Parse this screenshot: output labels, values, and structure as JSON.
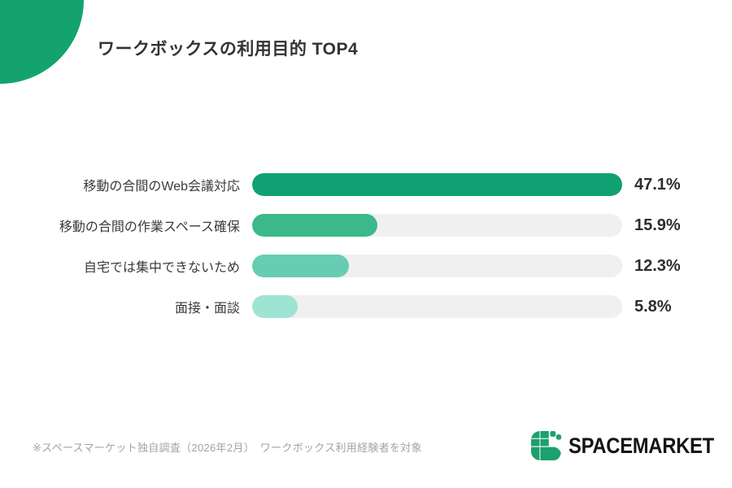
{
  "title": "ワークボックスの利用目的 TOP4",
  "chart_data": {
    "type": "bar",
    "orientation": "horizontal",
    "title": "ワークボックスの利用目的 TOP4",
    "categories": [
      "移動の合間のWeb会議対応",
      "移動の合間の作業スペース確保",
      "自宅では集中できないため",
      "面接・面談"
    ],
    "values": [
      47.1,
      15.9,
      12.3,
      5.8
    ],
    "value_labels": [
      "47.1%",
      "15.9%",
      "12.3%",
      "5.8%"
    ],
    "unit": "%",
    "axis_max": 47.1,
    "grid": false,
    "legend": false,
    "bar_colors": [
      "#10A173",
      "#3BB98B",
      "#67CDB2",
      "#9DE4D3"
    ],
    "track_color": "#F0F0F1"
  },
  "footnote": "※スペースマーケット独自調査（2026年2月）　ワークボックス利用経験者を対象",
  "logo": {
    "text": "SPACEMARKET",
    "icon": "spacemarket-s-mark",
    "icon_color": "#1CA06E"
  },
  "decor": {
    "corner_circle_color": "#14A36E"
  }
}
